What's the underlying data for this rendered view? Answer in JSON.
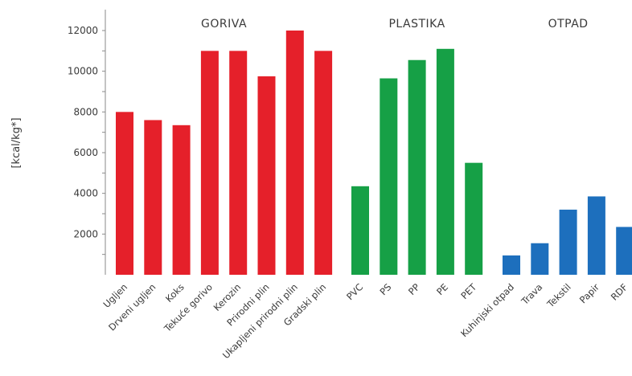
{
  "chart_data": {
    "type": "bar",
    "ylabel": "[kcal/kg*]",
    "ylim": [
      0,
      12000
    ],
    "yticks": [
      2000,
      4000,
      6000,
      8000,
      10000,
      12000
    ],
    "groups": [
      {
        "label": "GORIVA",
        "color": "#e5202a",
        "categories": [
          "Ugljen",
          "Drveni ugljen",
          "Koks",
          "Tekuće gorivo",
          "Kerozin",
          "Prirodni plin",
          "Ukapljeni prirodni plin",
          "Gradski plin"
        ],
        "values": [
          8000,
          7600,
          7350,
          11000,
          11000,
          9750,
          12000,
          11000
        ]
      },
      {
        "label": "PLASTIKA",
        "color": "#16a046",
        "categories": [
          "PVC",
          "PS",
          "PP",
          "PE",
          "PET"
        ],
        "values": [
          4350,
          9650,
          10550,
          11100,
          5500
        ]
      },
      {
        "label": "OTPAD",
        "color": "#1d6fbd",
        "categories": [
          "Kuhinjski otpad",
          "Trava",
          "Tekstil",
          "Papir",
          "RDF"
        ],
        "values": [
          950,
          1550,
          3200,
          3850,
          2350
        ]
      }
    ]
  }
}
